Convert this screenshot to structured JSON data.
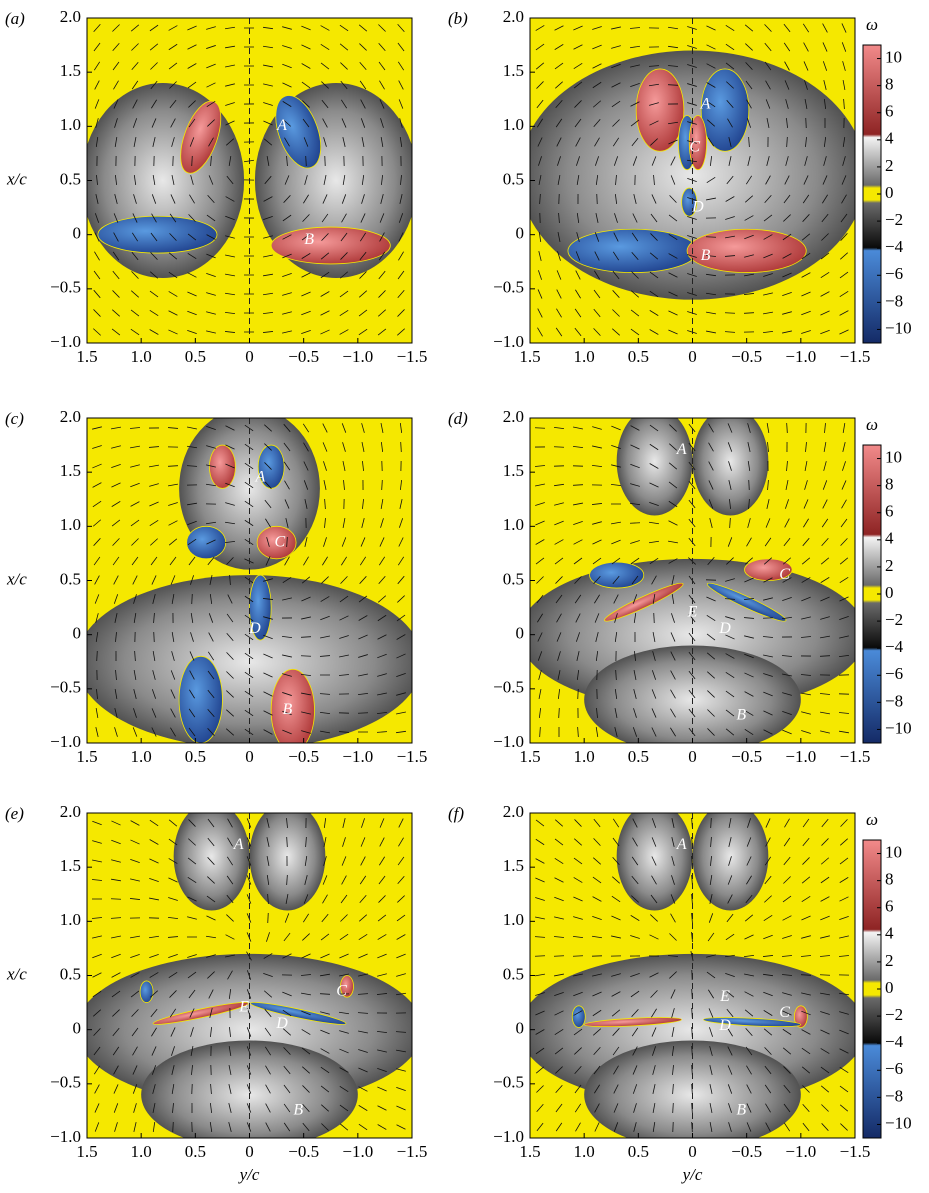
{
  "panels": [
    {
      "label": "(a)",
      "annotations": [
        "A",
        "B"
      ]
    },
    {
      "label": "(b)",
      "annotations": [
        "A",
        "C",
        "D",
        "B"
      ]
    },
    {
      "label": "(c)",
      "annotations": [
        "A",
        "C",
        "D",
        "B"
      ]
    },
    {
      "label": "(d)",
      "annotations": [
        "A",
        "C",
        "E",
        "D",
        "B"
      ]
    },
    {
      "label": "(e)",
      "annotations": [
        "A",
        "C",
        "E",
        "D",
        "B"
      ]
    },
    {
      "label": "(f)",
      "annotations": [
        "A",
        "C",
        "E",
        "D",
        "B"
      ]
    }
  ],
  "axes": {
    "xlabel": "y/c",
    "ylabel": "x/c",
    "xlim": [
      1.5,
      -1.5
    ],
    "ylim": [
      -1,
      2
    ],
    "xticks": [
      {
        "value": 1.5,
        "label": "1.5"
      },
      {
        "value": 1,
        "label": "1.0"
      },
      {
        "value": 0.5,
        "label": "0.5"
      },
      0,
      {
        "value": -0.5,
        "label": "−0.5"
      },
      {
        "value": -1,
        "label": "−1.0"
      },
      {
        "value": -1.5,
        "label": "−1.5"
      }
    ],
    "yticks": [
      {
        "value": 2,
        "label": "2.0"
      },
      {
        "value": 1.5,
        "label": "1.5"
      },
      {
        "value": 1,
        "label": "1.0"
      },
      {
        "value": 0.5,
        "label": "0.5"
      },
      0,
      {
        "value": -0.5,
        "label": "−0.5"
      },
      {
        "value": -1,
        "label": "−1.0"
      }
    ]
  },
  "colorbar": {
    "label": "ω",
    "ticks": [
      10,
      8,
      6,
      4,
      2,
      0,
      {
        "value": -2,
        "label": "−2"
      },
      {
        "value": -4,
        "label": "−4"
      },
      {
        "value": -6,
        "label": "−6"
      },
      {
        "value": -8,
        "label": "−8"
      },
      {
        "value": -10,
        "label": "−10"
      }
    ]
  }
}
